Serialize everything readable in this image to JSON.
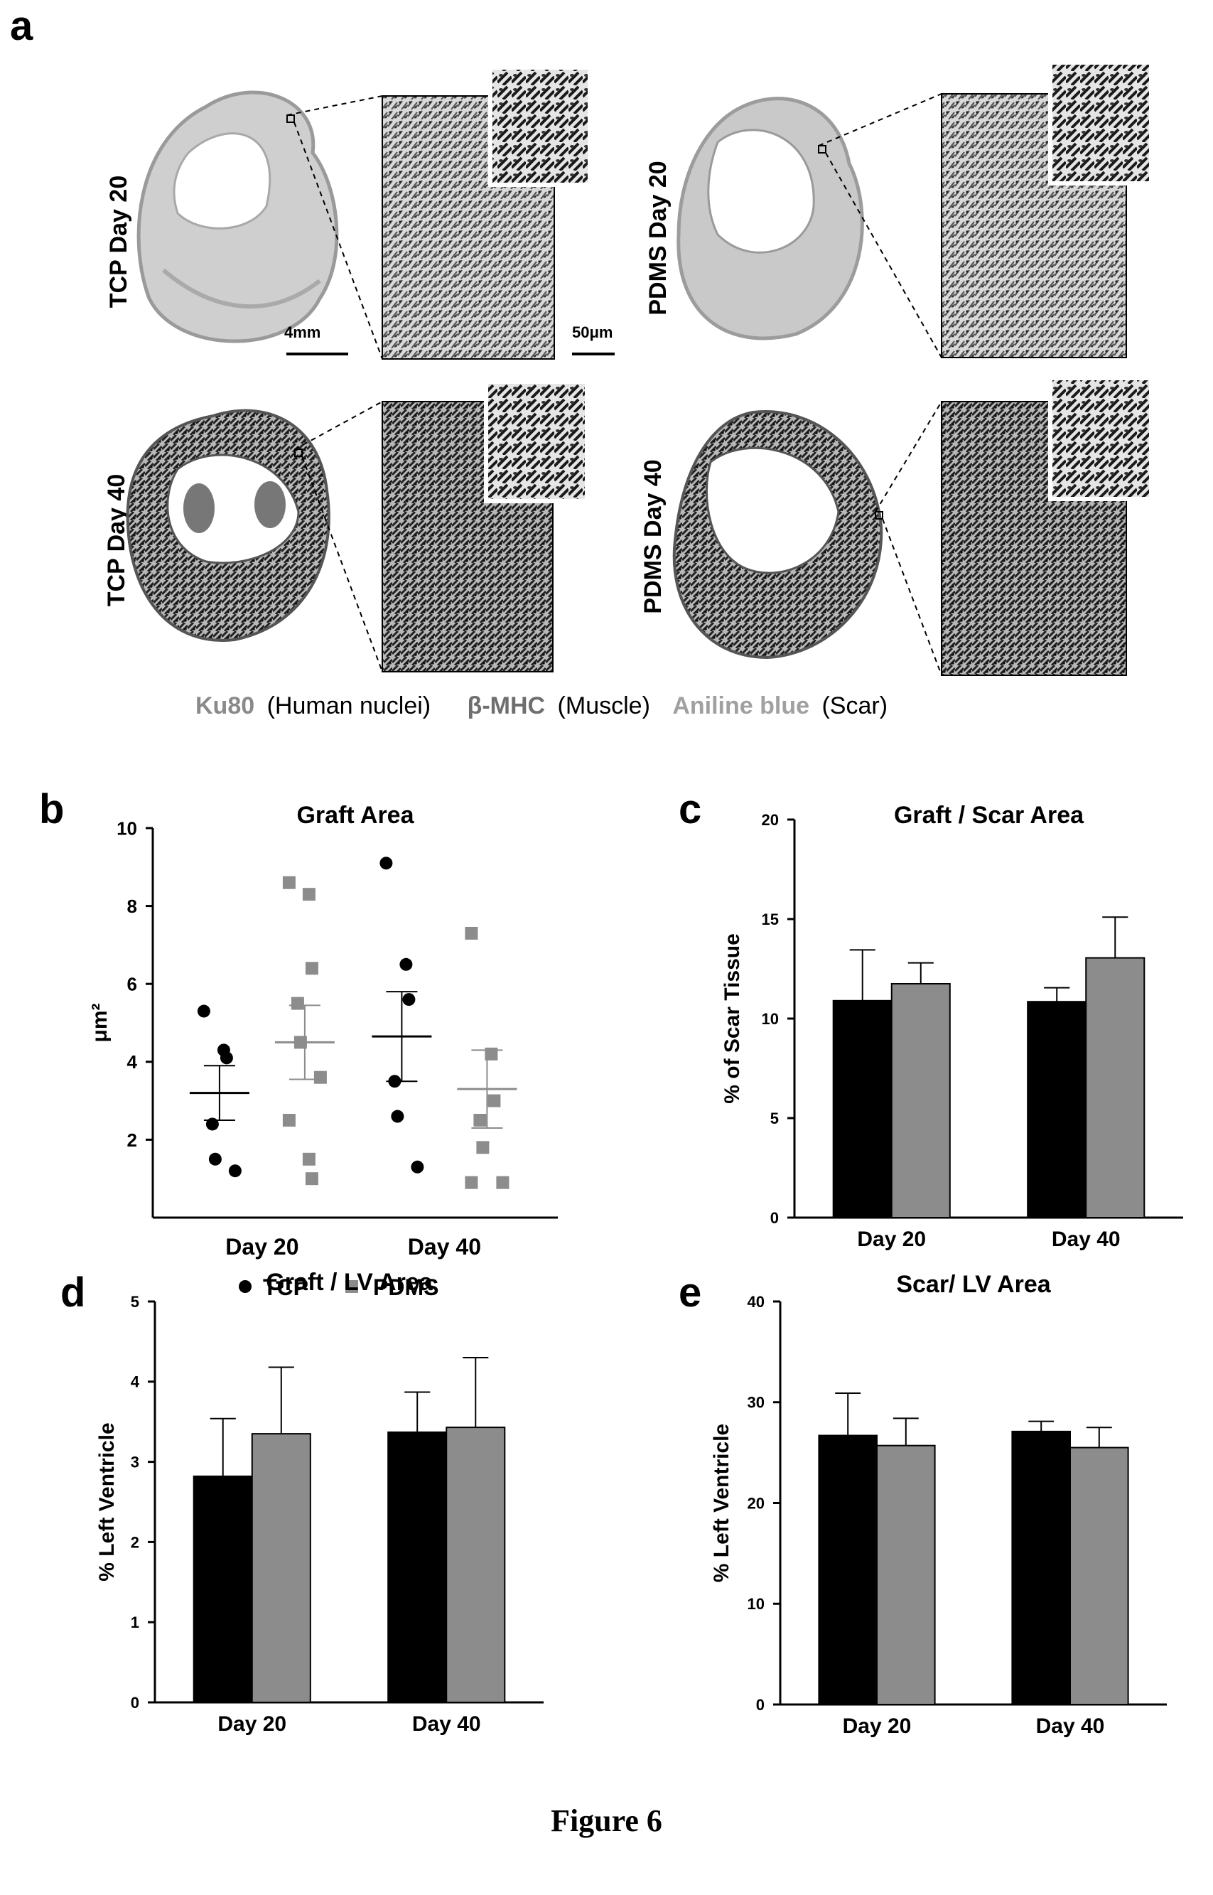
{
  "figure_caption": "Figure 6",
  "panel_a": {
    "letter": "a",
    "labels": {
      "tcp20": "TCP Day 20",
      "pdms20": "PDMS Day 20",
      "tcp40": "TCP Day 40",
      "pdms40": "PDMS Day 40"
    },
    "scale_bar_section": "4mm",
    "scale_bar_zoom": "50μm",
    "stain_legend": [
      {
        "stain": "Ku80",
        "desc": "(Human nuclei)",
        "color": "#8a8a8a"
      },
      {
        "stain": "β-MHC",
        "desc": "(Muscle)",
        "color": "#6e6e6e"
      },
      {
        "stain": "Aniline blue",
        "desc": "(Scar)",
        "color": "#a0a0a0"
      }
    ]
  },
  "legend": {
    "tcp_label": "TCP",
    "pdms_label": "PDMS",
    "tcp_color": "#000000",
    "pdms_color": "#8c8c8c"
  },
  "chart_data": [
    {
      "panel": "b",
      "type": "scatter",
      "title": "Graft Area",
      "ylabel": "μm²",
      "ylim": [
        0,
        10
      ],
      "yticks": [
        2,
        4,
        6,
        8,
        10
      ],
      "categories": [
        "Day 20",
        "Day 40"
      ],
      "series": [
        {
          "name": "TCP",
          "color": "#000000",
          "day20": [
            5.3,
            4.3,
            4.1,
            2.4,
            1.5,
            1.2
          ],
          "day20_mean": 3.2,
          "day20_sem": 0.7,
          "day40": [
            9.1,
            6.5,
            5.6,
            3.5,
            2.6,
            1.3
          ],
          "day40_mean": 4.65,
          "day40_sem": 1.15
        },
        {
          "name": "PDMS",
          "color": "#8c8c8c",
          "day20": [
            8.6,
            8.3,
            6.4,
            5.5,
            4.5,
            3.6,
            2.5,
            1.5,
            1.0
          ],
          "day20_mean": 4.5,
          "day20_sem": 0.95,
          "day40": [
            7.3,
            4.2,
            3.0,
            2.5,
            1.8,
            0.9,
            0.9
          ],
          "day40_mean": 3.3,
          "day40_sem": 1.0
        }
      ]
    },
    {
      "panel": "c",
      "type": "bar",
      "title": "Graft / Scar Area",
      "ylabel": "% of Scar Tissue",
      "ylim": [
        0,
        20
      ],
      "yticks": [
        0,
        5,
        10,
        15,
        20
      ],
      "categories": [
        "Day 20",
        "Day 40"
      ],
      "series": [
        {
          "name": "TCP",
          "values": [
            10.9,
            10.85
          ],
          "errors": [
            2.55,
            0.7
          ],
          "color": "#000000"
        },
        {
          "name": "PDMS",
          "values": [
            11.75,
            13.05
          ],
          "errors": [
            1.05,
            2.05
          ],
          "color": "#8c8c8c"
        }
      ]
    },
    {
      "panel": "d",
      "type": "bar",
      "title": "Graft / LV Area",
      "ylabel": "% Left Ventricle",
      "ylim": [
        0,
        5
      ],
      "yticks": [
        0,
        1,
        2,
        3,
        4,
        5
      ],
      "categories": [
        "Day 20",
        "Day 40"
      ],
      "series": [
        {
          "name": "TCP",
          "values": [
            2.82,
            3.37
          ],
          "errors": [
            0.72,
            0.5
          ],
          "color": "#000000"
        },
        {
          "name": "PDMS",
          "values": [
            3.35,
            3.43
          ],
          "errors": [
            0.83,
            0.87
          ],
          "color": "#8c8c8c"
        }
      ]
    },
    {
      "panel": "e",
      "type": "bar",
      "title": "Scar/ LV Area",
      "ylabel": "% Left Ventricle",
      "ylim": [
        0,
        40
      ],
      "yticks": [
        0,
        10,
        20,
        30,
        40
      ],
      "categories": [
        "Day 20",
        "Day 40"
      ],
      "series": [
        {
          "name": "TCP",
          "values": [
            26.7,
            27.1
          ],
          "errors": [
            4.2,
            1.0
          ],
          "color": "#000000"
        },
        {
          "name": "PDMS",
          "values": [
            25.7,
            25.5
          ],
          "errors": [
            2.7,
            2.0
          ],
          "color": "#8c8c8c"
        }
      ]
    }
  ]
}
